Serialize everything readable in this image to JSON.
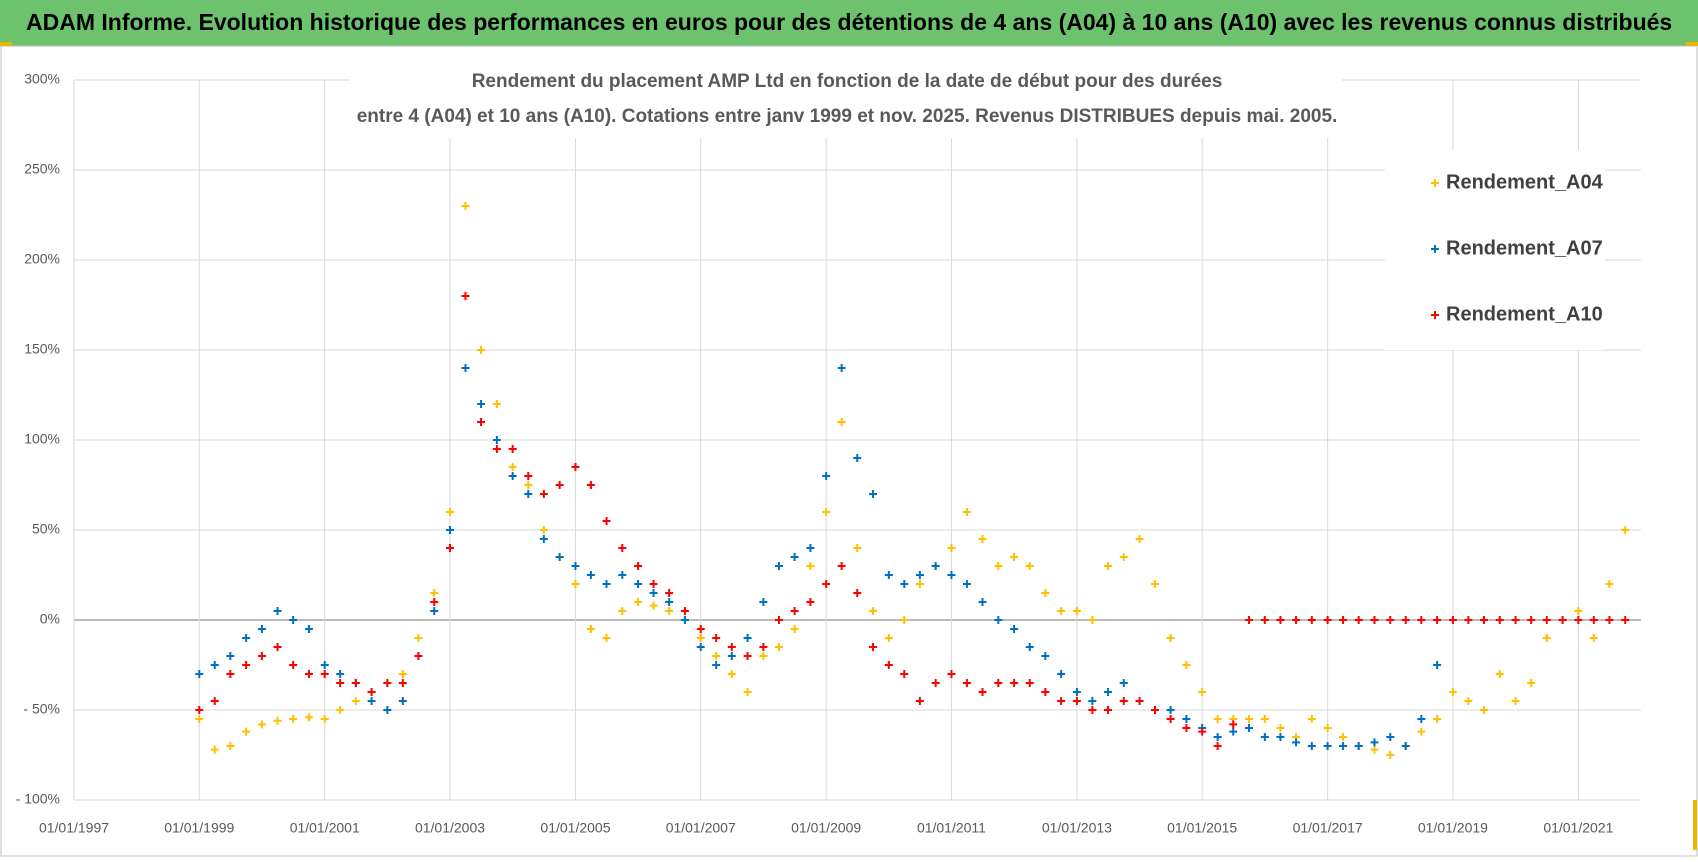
{
  "chart_data": {
    "type": "scatter",
    "title": "ADAM Informe. Evolution historique des performances en euros pour des détentions de 4 ans (A04) à 10 ans (A10) avec les revenus connus distribués",
    "subtitle": [
      "Rendement du placement AMP Ltd en fonction de la date de début pour des durées",
      "entre 4 (A04) et 10 ans (A10).  Cotations entre janv 1999 et nov. 2025. Revenus DISTRIBUES depuis mai. 2005."
    ],
    "x": [
      "1999-01-01",
      "1999-04-01",
      "1999-07-01",
      "1999-10-01",
      "2000-01-01",
      "2000-04-01",
      "2000-07-01",
      "2000-10-01",
      "2001-01-01",
      "2001-04-01",
      "2001-07-01",
      "2001-10-01",
      "2002-01-01",
      "2002-04-01",
      "2002-07-01",
      "2002-10-01",
      "2003-01-01",
      "2003-04-01",
      "2003-07-01",
      "2003-10-01",
      "2004-01-01",
      "2004-04-01",
      "2004-07-01",
      "2004-10-01",
      "2005-01-01",
      "2005-04-01",
      "2005-07-01",
      "2005-10-01",
      "2006-01-01",
      "2006-04-01",
      "2006-07-01",
      "2006-10-01",
      "2007-01-01",
      "2007-04-01",
      "2007-07-01",
      "2007-10-01",
      "2008-01-01",
      "2008-04-01",
      "2008-07-01",
      "2008-10-01",
      "2009-01-01",
      "2009-04-01",
      "2009-07-01",
      "2009-10-01",
      "2010-01-01",
      "2010-04-01",
      "2010-07-01",
      "2010-10-01",
      "2011-01-01",
      "2011-04-01",
      "2011-07-01",
      "2011-10-01",
      "2012-01-01",
      "2012-04-01",
      "2012-07-01",
      "2012-10-01",
      "2013-01-01",
      "2013-04-01",
      "2013-07-01",
      "2013-10-01",
      "2014-01-01",
      "2014-04-01",
      "2014-07-01",
      "2014-10-01",
      "2015-01-01",
      "2015-04-01",
      "2015-07-01",
      "2015-10-01",
      "2016-01-01",
      "2016-04-01",
      "2016-07-01",
      "2016-10-01",
      "2017-01-01",
      "2017-04-01",
      "2017-07-01",
      "2017-10-01",
      "2018-01-01",
      "2018-04-01",
      "2018-07-01",
      "2018-10-01",
      "2019-01-01",
      "2019-04-01",
      "2019-07-01",
      "2019-10-01",
      "2020-01-01",
      "2020-04-01",
      "2020-07-01",
      "2020-10-01",
      "2021-01-01",
      "2021-04-01",
      "2021-07-01",
      "2021-10-01"
    ],
    "series": [
      {
        "name": "Rendement_A04",
        "color": "#ffc000",
        "values": [
          -55,
          -72,
          -70,
          -62,
          -58,
          -56,
          -55,
          -54,
          -55,
          -50,
          -45,
          -40,
          -35,
          -30,
          -10,
          15,
          60,
          230,
          150,
          120,
          85,
          75,
          50,
          35,
          20,
          -5,
          -10,
          5,
          10,
          8,
          5,
          0,
          -10,
          -20,
          -30,
          -40,
          -20,
          -15,
          -5,
          30,
          60,
          110,
          40,
          5,
          -10,
          0,
          20,
          30,
          40,
          60,
          45,
          30,
          35,
          30,
          15,
          5,
          5,
          0,
          30,
          35,
          45,
          20,
          -10,
          -25,
          -40,
          -55,
          -55,
          -55,
          -55,
          -60,
          -65,
          -55,
          -60,
          -65,
          -70,
          -72,
          -75,
          -70,
          -62,
          -55,
          -40,
          -45,
          -50,
          -30,
          -45,
          -35,
          -10,
          0,
          5,
          -10,
          20,
          50
        ]
      },
      {
        "name": "Rendement_A07",
        "color": "#0070c0",
        "values": [
          -30,
          -25,
          -20,
          -10,
          -5,
          5,
          0,
          -5,
          -25,
          -30,
          -35,
          -45,
          -50,
          -45,
          -20,
          5,
          50,
          140,
          120,
          100,
          80,
          70,
          45,
          35,
          30,
          25,
          20,
          25,
          20,
          15,
          10,
          0,
          -15,
          -25,
          -20,
          -10,
          10,
          30,
          35,
          40,
          80,
          140,
          90,
          70,
          25,
          20,
          25,
          30,
          25,
          20,
          10,
          0,
          -5,
          -15,
          -20,
          -30,
          -40,
          -45,
          -40,
          -35,
          -45,
          -50,
          -50,
          -55,
          -60,
          -65,
          -62,
          -60,
          -65,
          -65,
          -68,
          -70,
          -70,
          -70,
          -70,
          -68,
          -65,
          -70,
          -55,
          -25,
          null,
          null,
          null,
          null,
          null,
          null,
          null,
          null,
          null,
          null,
          null,
          null
        ]
      },
      {
        "name": "Rendement_A10",
        "color": "#ff0000",
        "values": [
          -50,
          -45,
          -30,
          -25,
          -20,
          -15,
          -25,
          -30,
          -30,
          -35,
          -35,
          -40,
          -35,
          -35,
          -20,
          10,
          40,
          180,
          110,
          95,
          95,
          80,
          70,
          75,
          85,
          75,
          55,
          40,
          30,
          20,
          15,
          5,
          -5,
          -10,
          -15,
          -20,
          -15,
          0,
          5,
          10,
          20,
          30,
          15,
          -15,
          -25,
          -30,
          -45,
          -35,
          -30,
          -35,
          -40,
          -35,
          -35,
          -35,
          -40,
          -45,
          -45,
          -50,
          -50,
          -45,
          -45,
          -50,
          -55,
          -60,
          -62,
          -70,
          -58,
          0,
          0,
          0,
          0,
          0,
          0,
          0,
          0,
          0,
          0,
          0,
          0,
          0,
          0,
          0,
          0,
          0,
          0,
          0,
          0,
          0,
          0,
          0,
          0,
          0
        ]
      }
    ],
    "xlim": [
      "1997-01-01",
      "2022-01-01"
    ],
    "xticks": [
      {
        "value": "1997-01-01",
        "label": "01/01/1997"
      },
      {
        "value": "1999-01-01",
        "label": "01/01/1999"
      },
      {
        "value": "2001-01-01",
        "label": "01/01/2001"
      },
      {
        "value": "2003-01-01",
        "label": "01/01/2003"
      },
      {
        "value": "2005-01-01",
        "label": "01/01/2005"
      },
      {
        "value": "2007-01-01",
        "label": "01/01/2007"
      },
      {
        "value": "2009-01-01",
        "label": "01/01/2009"
      },
      {
        "value": "2011-01-01",
        "label": "01/01/2011"
      },
      {
        "value": "2013-01-01",
        "label": "01/01/2013"
      },
      {
        "value": "2015-01-01",
        "label": "01/01/2015"
      },
      {
        "value": "2017-01-01",
        "label": "01/01/2017"
      },
      {
        "value": "2019-01-01",
        "label": "01/01/2019"
      },
      {
        "value": "2021-01-01",
        "label": "01/01/2021"
      }
    ],
    "ylim": [
      -100,
      300
    ],
    "yticks": [
      {
        "value": -100,
        "label": "- 100%"
      },
      {
        "value": -50,
        "label": "- 50%"
      },
      {
        "value": 0,
        "label": "0%"
      },
      {
        "value": 50,
        "label": "50%"
      },
      {
        "value": 100,
        "label": "100%"
      },
      {
        "value": 150,
        "label": "150%"
      },
      {
        "value": 200,
        "label": "200%"
      },
      {
        "value": 250,
        "label": "250%"
      },
      {
        "value": 300,
        "label": "300%"
      }
    ],
    "grid": true,
    "legend": "upper right"
  }
}
